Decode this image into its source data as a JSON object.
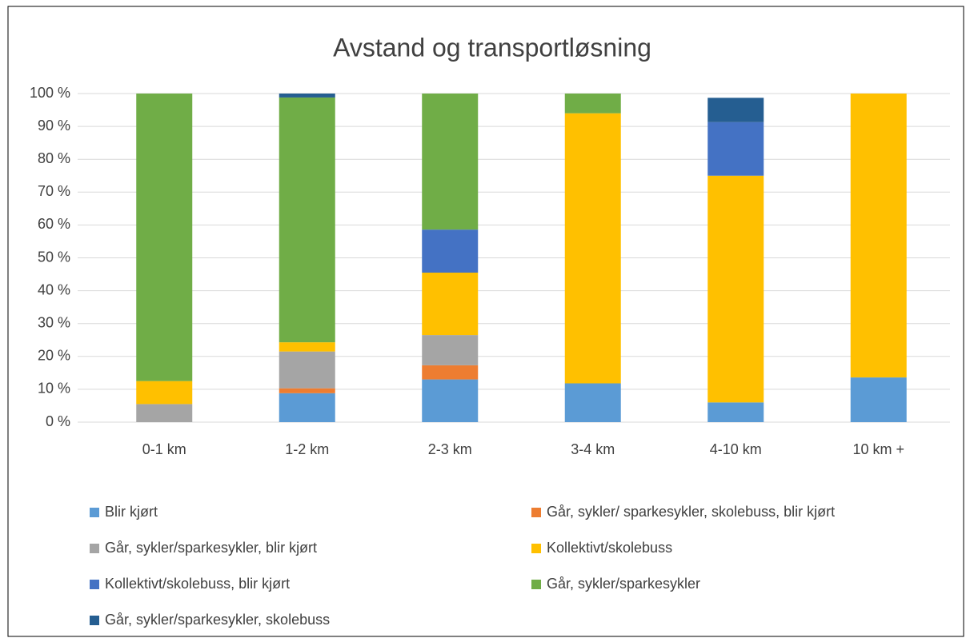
{
  "chart_data": {
    "type": "stacked-bar",
    "title": "Avstand og transportløsning",
    "categories": [
      "0-1 km",
      "1-2 km",
      "2-3 km",
      "3-4 km",
      "4-10 km",
      "10 km +"
    ],
    "series": [
      {
        "name": "Blir kjørt",
        "color": "#5b9bd5",
        "values": [
          0,
          8.8,
          13,
          11.8,
          6,
          13.6
        ]
      },
      {
        "name": "Går, sykler/ sparkesykler, skolebuss, blir kjørt",
        "color": "#ed7d31",
        "values": [
          0,
          1.5,
          4.3,
          0,
          0,
          0
        ]
      },
      {
        "name": "Går, sykler/sparkesykler, blir kjørt",
        "color": "#a5a5a5",
        "values": [
          5.5,
          11.2,
          9.2,
          0,
          0,
          0
        ]
      },
      {
        "name": "Kollektivt/skolebuss",
        "color": "#ffc000",
        "values": [
          7,
          2.8,
          19,
          82.2,
          69,
          86.4
        ]
      },
      {
        "name": "Kollektivt/skolebuss, blir kjørt",
        "color": "#4472c4",
        "values": [
          0,
          0,
          13.1,
          0,
          16.3,
          0
        ]
      },
      {
        "name": "Går, sykler/sparkesykler",
        "color": "#70ad47",
        "values": [
          87.5,
          74.5,
          41.4,
          6,
          0,
          0
        ]
      },
      {
        "name": "Går, sykler/sparkesykler, skolebuss",
        "color": "#255e91",
        "values": [
          0,
          1.2,
          0,
          0,
          7.4,
          0
        ]
      }
    ],
    "ylim": [
      0,
      100
    ],
    "yticks": [
      {
        "value": 0,
        "label": "0 %"
      },
      {
        "value": 10,
        "label": "10 %"
      },
      {
        "value": 20,
        "label": "20 %"
      },
      {
        "value": 30,
        "label": "30 %"
      },
      {
        "value": 40,
        "label": "40 %"
      },
      {
        "value": 50,
        "label": "50 %"
      },
      {
        "value": 60,
        "label": "60 %"
      },
      {
        "value": 70,
        "label": "70 %"
      },
      {
        "value": 80,
        "label": "80 %"
      },
      {
        "value": 90,
        "label": "90 %"
      },
      {
        "value": 100,
        "label": "100 %"
      }
    ],
    "grid": true
  }
}
